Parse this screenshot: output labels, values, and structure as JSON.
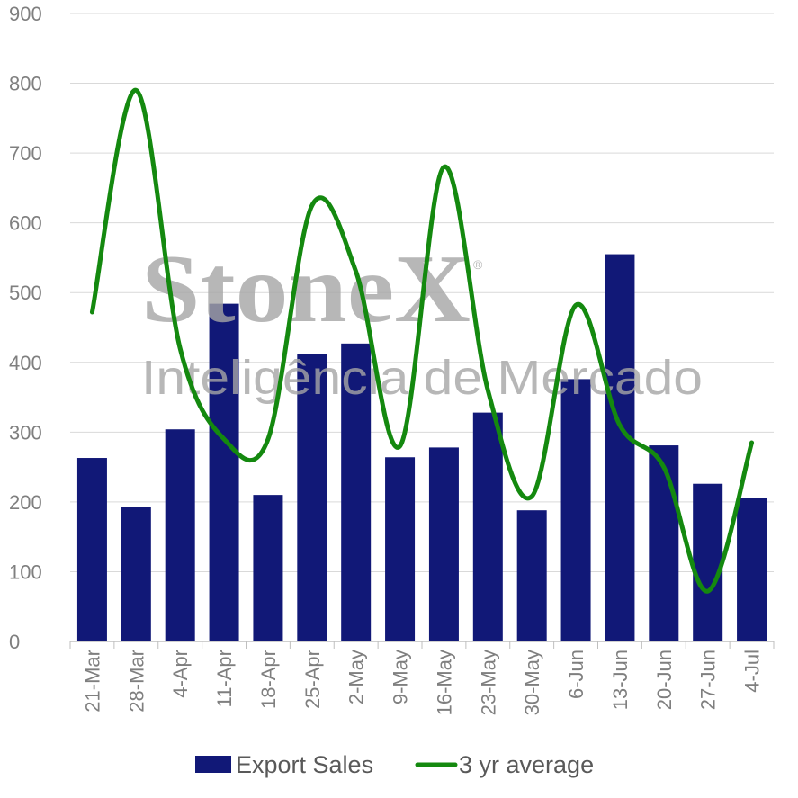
{
  "chart_data": {
    "type": "bar",
    "categories": [
      "21-Mar",
      "28-Mar",
      "4-Apr",
      "11-Apr",
      "18-Apr",
      "25-Apr",
      "2-May",
      "9-May",
      "16-May",
      "23-May",
      "30-May",
      "6-Jun",
      "13-Jun",
      "20-Jun",
      "27-Jun",
      "4-Jul"
    ],
    "series": [
      {
        "name": "Export Sales",
        "type": "bar",
        "color": "#111877",
        "values": [
          263,
          193,
          304,
          484,
          210,
          412,
          427,
          264,
          278,
          328,
          188,
          376,
          555,
          281,
          226,
          206
        ]
      },
      {
        "name": "3 yr average",
        "type": "line",
        "smooth": true,
        "color": "#14890f",
        "values": [
          472,
          790,
          420,
          290,
          290,
          625,
          530,
          280,
          680,
          360,
          208,
          482,
          310,
          250,
          72,
          285
        ]
      }
    ],
    "yticks": [
      "0",
      "100",
      "200",
      "300",
      "400",
      "500",
      "600",
      "700",
      "800",
      "900"
    ],
    "ylim": [
      0,
      900
    ],
    "grid": true,
    "legend_position": "bottom",
    "watermark": {
      "brand": "StoneX",
      "registered": "®",
      "tagline": "Inteligência de Mercado"
    }
  }
}
